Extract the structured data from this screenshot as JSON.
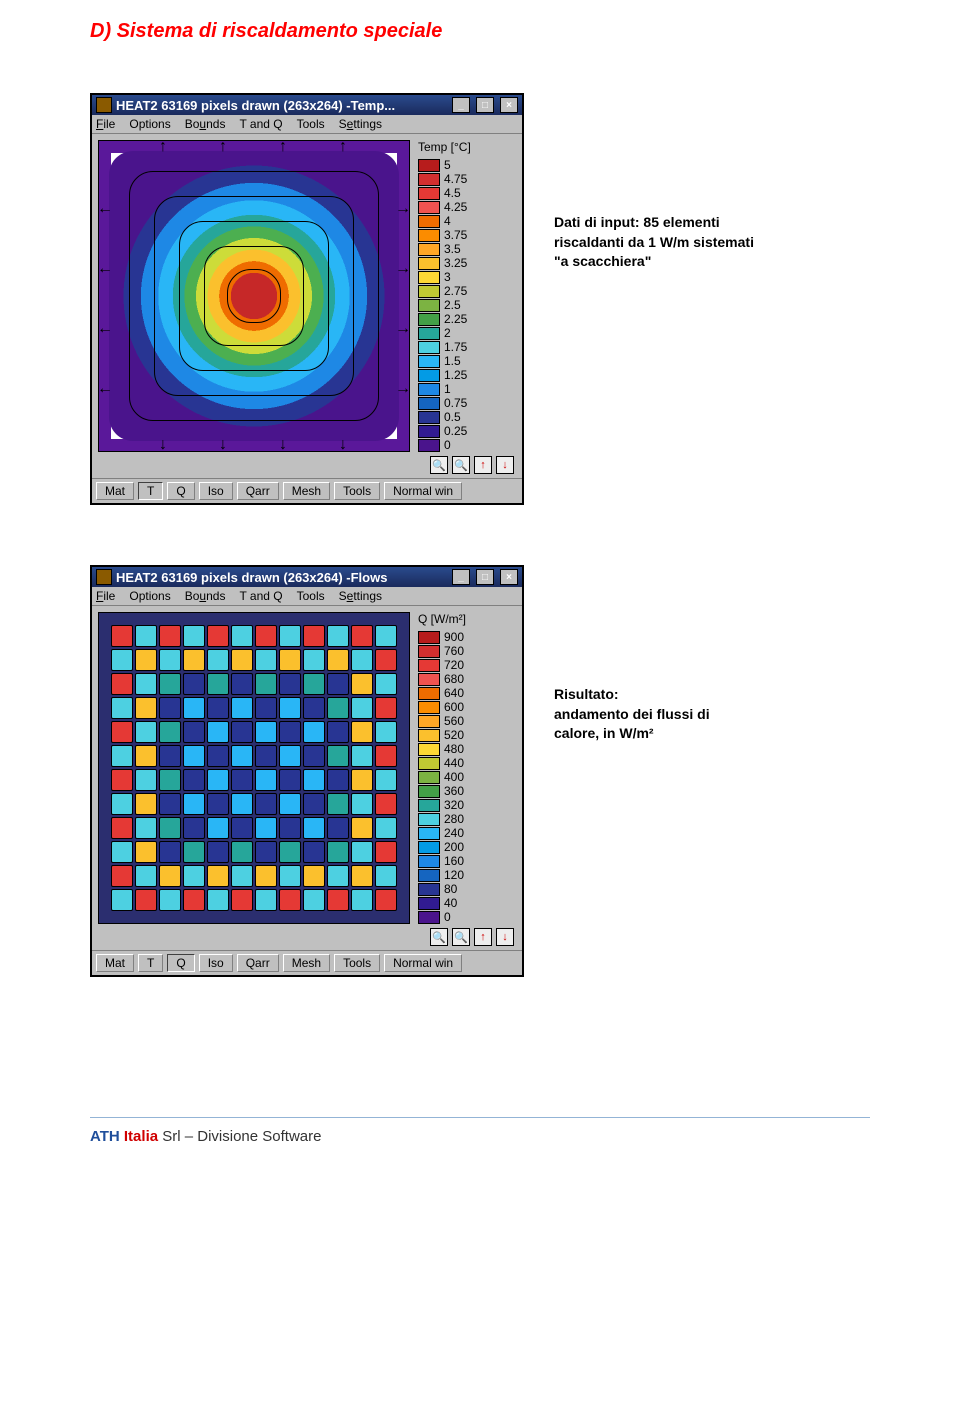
{
  "heading": "D) Sistema di riscaldamento speciale",
  "caption1": "Dati di input: 85 elementi riscaldanti da 1 W/m sistemati \"a scacchiera\"",
  "caption2_line1": "Risultato:",
  "caption2_line2": "andamento dei flussi di calore, in W/m²",
  "win1": {
    "title": "HEAT2 63169 pixels drawn (263x264) -Temp...",
    "menu": [
      "File",
      "Options",
      "Bounds",
      "T and Q",
      "Tools",
      "Settings"
    ],
    "legend_title": "Temp [°C]",
    "legend": [
      {
        "c": "#b71c1c",
        "v": "5"
      },
      {
        "c": "#d32f2f",
        "v": "4.75"
      },
      {
        "c": "#e53935",
        "v": "4.5"
      },
      {
        "c": "#ef5350",
        "v": "4.25"
      },
      {
        "c": "#ef6c00",
        "v": "4"
      },
      {
        "c": "#fb8c00",
        "v": "3.75"
      },
      {
        "c": "#ffa726",
        "v": "3.5"
      },
      {
        "c": "#fbc02d",
        "v": "3.25"
      },
      {
        "c": "#fdd835",
        "v": "3"
      },
      {
        "c": "#c0ca33",
        "v": "2.75"
      },
      {
        "c": "#7cb342",
        "v": "2.5"
      },
      {
        "c": "#43a047",
        "v": "2.25"
      },
      {
        "c": "#26a69a",
        "v": "2"
      },
      {
        "c": "#4dd0e1",
        "v": "1.75"
      },
      {
        "c": "#29b6f6",
        "v": "1.5"
      },
      {
        "c": "#039be5",
        "v": "1.25"
      },
      {
        "c": "#1e88e5",
        "v": "1"
      },
      {
        "c": "#1565c0",
        "v": "0.75"
      },
      {
        "c": "#283593",
        "v": "0.5"
      },
      {
        "c": "#311b92",
        "v": "0.25"
      },
      {
        "c": "#4a148c",
        "v": "0"
      }
    ],
    "status": [
      "Mat",
      "T",
      "Q",
      "Iso",
      "Qarr",
      "Mesh",
      "Tools",
      "Normal win"
    ],
    "status_active": "T"
  },
  "win2": {
    "title": "HEAT2 63169 pixels drawn (263x264) -Flows",
    "menu": [
      "File",
      "Options",
      "Bounds",
      "T and Q",
      "Tools",
      "Settings"
    ],
    "legend_title": "Q [W/m²]",
    "legend": [
      {
        "c": "#b71c1c",
        "v": "900"
      },
      {
        "c": "#d32f2f",
        "v": "760"
      },
      {
        "c": "#e53935",
        "v": "720"
      },
      {
        "c": "#ef5350",
        "v": "680"
      },
      {
        "c": "#ef6c00",
        "v": "640"
      },
      {
        "c": "#fb8c00",
        "v": "600"
      },
      {
        "c": "#ffa726",
        "v": "560"
      },
      {
        "c": "#fbc02d",
        "v": "520"
      },
      {
        "c": "#fdd835",
        "v": "480"
      },
      {
        "c": "#c0ca33",
        "v": "440"
      },
      {
        "c": "#7cb342",
        "v": "400"
      },
      {
        "c": "#43a047",
        "v": "360"
      },
      {
        "c": "#26a69a",
        "v": "320"
      },
      {
        "c": "#4dd0e1",
        "v": "280"
      },
      {
        "c": "#29b6f6",
        "v": "240"
      },
      {
        "c": "#039be5",
        "v": "200"
      },
      {
        "c": "#1e88e5",
        "v": "160"
      },
      {
        "c": "#1565c0",
        "v": "120"
      },
      {
        "c": "#283593",
        "v": "80"
      },
      {
        "c": "#311b92",
        "v": "40"
      },
      {
        "c": "#4a148c",
        "v": "0"
      }
    ],
    "status": [
      "Mat",
      "T",
      "Q",
      "Iso",
      "Qarr",
      "Mesh",
      "Tools",
      "Normal win"
    ],
    "status_active": "Q"
  },
  "footer": {
    "ath": "ATH",
    "italia": "Italia",
    "rest": " Srl – Divisione Software"
  },
  "flow_colors_edge": [
    "#e53935",
    "#fb8c00",
    "#fbc02d",
    "#7cb342",
    "#26a69a",
    "#29b6f6"
  ],
  "flow_color_center": "#283593",
  "flow_color_alt": "#4dd0e1"
}
